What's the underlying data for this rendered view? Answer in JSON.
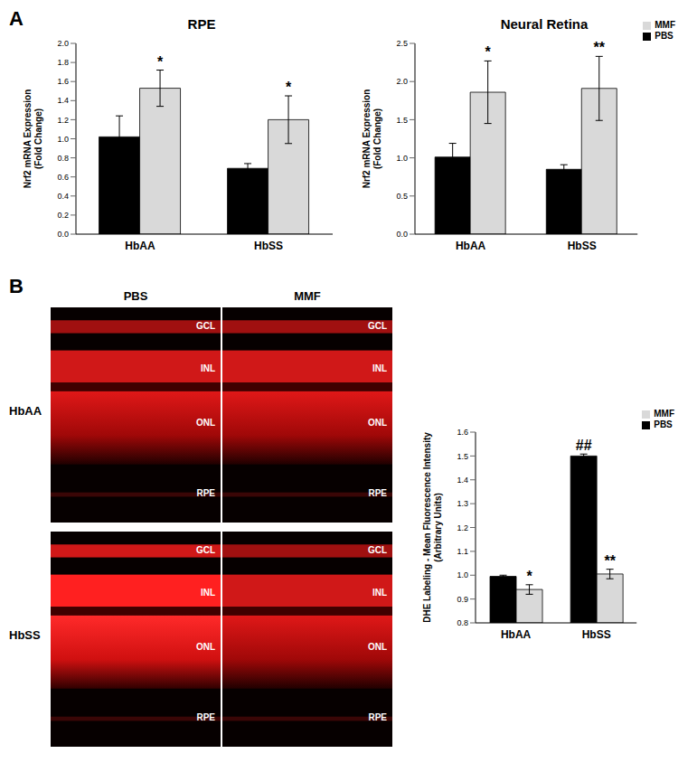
{
  "panel_labels": [
    "A",
    "B"
  ],
  "chart_data": [
    {
      "type": "bar",
      "title": "RPE",
      "categories": [
        "HbAA",
        "HbSS"
      ],
      "y_label": "Nrf2 mRNA Expression (Fold Change)",
      "ylim": [
        0,
        2
      ],
      "yticks": [
        {
          "value": 0,
          "label": "0.0"
        },
        0.2,
        0.4,
        0.6,
        0.8,
        {
          "value": 1,
          "label": "1.0"
        },
        1.2,
        1.4,
        1.6,
        1.8,
        {
          "value": 2,
          "label": "2.0"
        }
      ],
      "grid": false,
      "series": [
        {
          "name": "PBS",
          "color": "#000000",
          "values": [
            1.02,
            0.69
          ],
          "errors": [
            0.22,
            0.05
          ],
          "annotations": [
            null,
            null
          ]
        },
        {
          "name": "MMF",
          "color": "#d9d9d9",
          "values": [
            1.53,
            1.2
          ],
          "errors": [
            0.19,
            0.25
          ],
          "annotations": [
            "*",
            "*"
          ]
        }
      ]
    },
    {
      "type": "bar",
      "title": "Neural Retina",
      "categories": [
        "HbAA",
        "HbSS"
      ],
      "y_label": "Nrf2 mRNA Expression (Fold Change)",
      "ylim": [
        0,
        2.5
      ],
      "yticks": [
        {
          "value": 0,
          "label": "0.0"
        },
        0.5,
        {
          "value": 1,
          "label": "1.0"
        },
        1.5,
        {
          "value": 2,
          "label": "2.0"
        },
        2.5
      ],
      "grid": false,
      "legend": "upper right",
      "series": [
        {
          "name": "PBS",
          "color": "#000000",
          "values": [
            1.01,
            0.85
          ],
          "errors": [
            0.18,
            0.06
          ],
          "annotations": [
            null,
            null
          ]
        },
        {
          "name": "MMF",
          "color": "#d9d9d9",
          "values": [
            1.86,
            1.91
          ],
          "errors": [
            0.41,
            0.42
          ],
          "annotations": [
            "*",
            "**"
          ]
        }
      ]
    },
    {
      "type": "bar",
      "categories": [
        "HbAA",
        "HbSS"
      ],
      "y_label": "DHE Labeling - Mean Fluorescence Intensity (Arbitrary Units)",
      "ylim": [
        0.8,
        1.6
      ],
      "yticks": [
        0.8,
        0.9,
        {
          "value": 1,
          "label": "1.0"
        },
        1.1,
        1.2,
        1.3,
        1.4,
        1.5,
        1.6
      ],
      "grid": false,
      "legend": "upper right",
      "series": [
        {
          "name": "PBS",
          "color": "#000000",
          "values": [
            0.995,
            1.5
          ],
          "errors": [
            0.005,
            0.008
          ],
          "annotations": [
            null,
            "##"
          ]
        },
        {
          "name": "MMF",
          "color": "#d9d9d9",
          "values": [
            0.94,
            1.005
          ],
          "errors": [
            0.02,
            0.02
          ],
          "annotations": [
            "*",
            "**"
          ]
        }
      ]
    }
  ],
  "micrographs": {
    "columns": [
      "PBS",
      "MMF"
    ],
    "rows": [
      "HbAA",
      "HbSS"
    ],
    "layers": [
      "GCL",
      "INL",
      "ONL",
      "RPE"
    ]
  }
}
